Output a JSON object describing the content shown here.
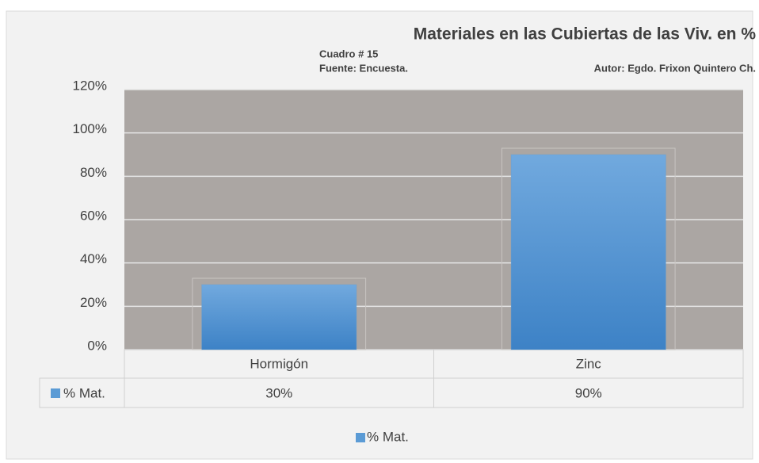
{
  "chart_data": {
    "type": "bar",
    "title": "Materiales en las Cubiertas de las Viv. en %",
    "subtitle": "Cuadro # 15",
    "source": "Fuente: Encuesta.",
    "author": "Autor: Egdo. Frixon Quintero Ch.",
    "categories": [
      "Hormigón",
      "Zinc"
    ],
    "series": [
      {
        "name": "% Mat.",
        "color": "#5b9bd5",
        "values": [
          30,
          90
        ],
        "value_labels": [
          "30%",
          "90%"
        ]
      }
    ],
    "ylim": [
      0,
      120
    ],
    "yticks": [
      {
        "value": 0,
        "label": "0%"
      },
      {
        "value": 20,
        "label": "20%"
      },
      {
        "value": 40,
        "label": "40%"
      },
      {
        "value": 60,
        "label": "60%"
      },
      {
        "value": 80,
        "label": "80%"
      },
      {
        "value": 100,
        "label": "100%"
      },
      {
        "value": 120,
        "label": "120%"
      }
    ],
    "grid": true,
    "legend": "bottom"
  }
}
